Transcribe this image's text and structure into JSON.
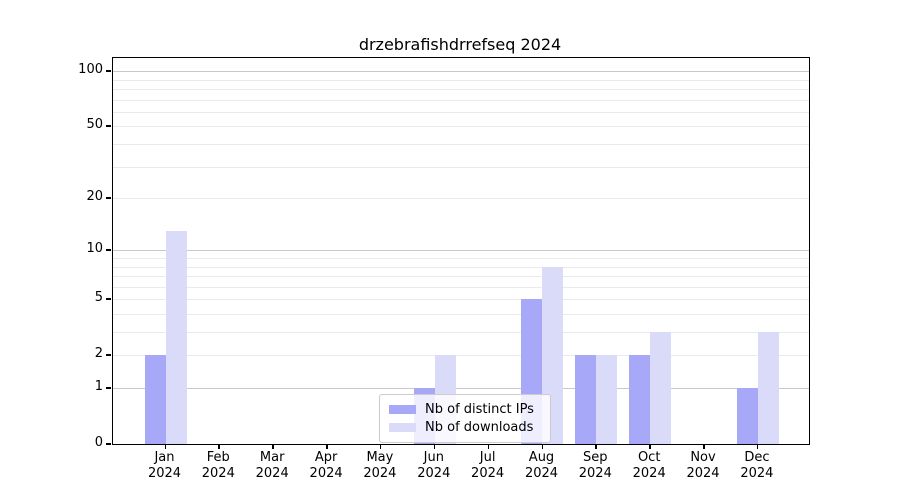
{
  "chart_data": {
    "type": "bar",
    "title": "drzebrafishdrrefseq 2024",
    "xlabel": "",
    "ylabel": "",
    "categories": [
      "Jan 2024",
      "Feb 2024",
      "Mar 2024",
      "Apr 2024",
      "May 2024",
      "Jun 2024",
      "Jul 2024",
      "Aug 2024",
      "Sep 2024",
      "Oct 2024",
      "Nov 2024",
      "Dec 2024"
    ],
    "series": [
      {
        "name": "Nb of distinct IPs",
        "color": "#a8a8f8",
        "values": [
          2,
          0,
          0,
          0,
          0,
          1,
          0,
          5,
          2,
          2,
          0,
          1
        ]
      },
      {
        "name": "Nb of downloads",
        "color": "#dadaf9",
        "values": [
          13,
          0,
          0,
          0,
          0,
          2,
          0,
          8,
          2,
          3,
          0,
          3
        ]
      }
    ],
    "y_axis": {
      "scale": "log10(1+value)",
      "ticks": [
        0,
        1,
        2,
        5,
        10,
        20,
        50,
        100
      ],
      "range": [
        0,
        118
      ],
      "gridlines_major": [
        1,
        10,
        100
      ],
      "gridlines_minor": [
        2,
        3,
        4,
        5,
        6,
        7,
        8,
        9,
        20,
        30,
        40,
        50,
        60,
        70,
        80,
        90
      ]
    },
    "grid": true,
    "legend_position": "lower center"
  },
  "colors": {
    "bar_distinct_ips": "#a8a8f8",
    "bar_downloads": "#dadaf9",
    "grid_major": "#c9c9c9",
    "grid_minor": "#eaeaea",
    "axis": "#000000",
    "legend_border": "#cccccc",
    "text": "#000000"
  }
}
